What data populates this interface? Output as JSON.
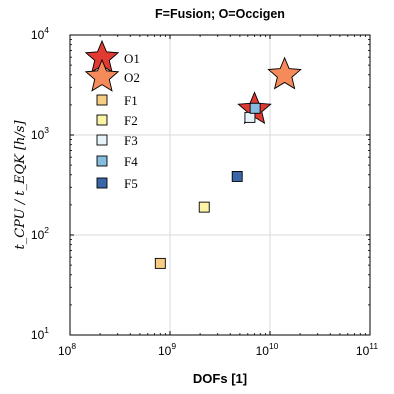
{
  "chart_data": {
    "type": "scatter",
    "title": "F=Fusion; O=Occigen",
    "xlabel": "DOFs [1]",
    "ylabel": "t_CPU / t_EQK [h/s]",
    "x_scale": "log",
    "y_scale": "log",
    "xlim": [
      100000000,
      100000000000
    ],
    "ylim": [
      10,
      10000
    ],
    "x_ticks": [
      {
        "value": 100000000,
        "base": "10",
        "exp": "8"
      },
      {
        "value": 1000000000,
        "base": "10",
        "exp": "9"
      },
      {
        "value": 10000000000,
        "base": "10",
        "exp": "10"
      },
      {
        "value": 100000000000,
        "base": "10",
        "exp": "11"
      }
    ],
    "y_ticks": [
      {
        "value": 10,
        "base": "10",
        "exp": "1"
      },
      {
        "value": 100,
        "base": "10",
        "exp": "2"
      },
      {
        "value": 1000,
        "base": "10",
        "exp": "3"
      },
      {
        "value": 10000,
        "base": "10",
        "exp": "4"
      }
    ],
    "grid": true,
    "legend_position": "top-left",
    "series": [
      {
        "name": "O1",
        "marker": "star",
        "color": "#e03a32",
        "points": [
          {
            "x": 7000000000,
            "y": 1800
          }
        ]
      },
      {
        "name": "O2",
        "marker": "star",
        "color": "#f58a5a",
        "points": [
          {
            "x": 14000000000,
            "y": 4000
          }
        ]
      },
      {
        "name": "F1",
        "marker": "square",
        "color": "#f7cc85",
        "points": [
          {
            "x": 800000000,
            "y": 52
          }
        ]
      },
      {
        "name": "F2",
        "marker": "square",
        "color": "#fbf3a6",
        "points": [
          {
            "x": 2200000000,
            "y": 190
          }
        ]
      },
      {
        "name": "F3",
        "marker": "square",
        "color": "#e6f3f8",
        "points": [
          {
            "x": 6300000000,
            "y": 1500
          }
        ]
      },
      {
        "name": "F4",
        "marker": "square",
        "color": "#86bcde",
        "points": [
          {
            "x": 7100000000,
            "y": 1850
          }
        ]
      },
      {
        "name": "F5",
        "marker": "square",
        "color": "#3a66a8",
        "points": [
          {
            "x": 4700000000,
            "y": 385
          }
        ]
      }
    ]
  }
}
